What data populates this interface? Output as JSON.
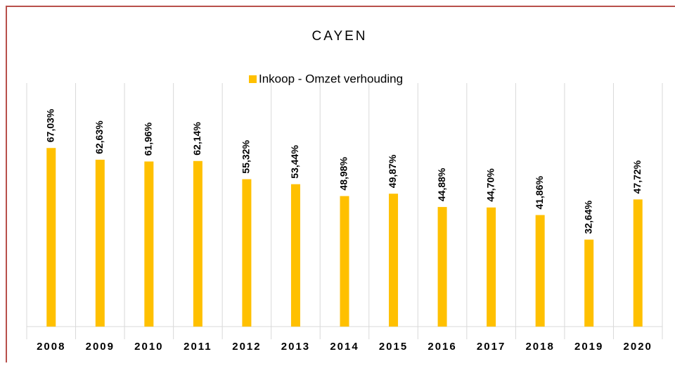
{
  "chart_data": {
    "type": "bar",
    "title": "CAYEN",
    "legend": "Inkoop - Omzet verhouding",
    "categories": [
      "2008",
      "2009",
      "2010",
      "2011",
      "2012",
      "2013",
      "2014",
      "2015",
      "2016",
      "2017",
      "2018",
      "2019",
      "2020"
    ],
    "values": [
      67.03,
      62.63,
      61.96,
      62.14,
      55.32,
      53.44,
      48.98,
      49.87,
      44.88,
      44.7,
      41.86,
      32.64,
      47.72
    ],
    "value_labels": [
      "67,03%",
      "62,63%",
      "61,96%",
      "62,14%",
      "55,32%",
      "53,44%",
      "48,98%",
      "49,87%",
      "44,88%",
      "44,70%",
      "41,86%",
      "32,64%",
      "47,72%"
    ],
    "color": "#ffc000",
    "ylim": [
      0,
      70
    ]
  }
}
